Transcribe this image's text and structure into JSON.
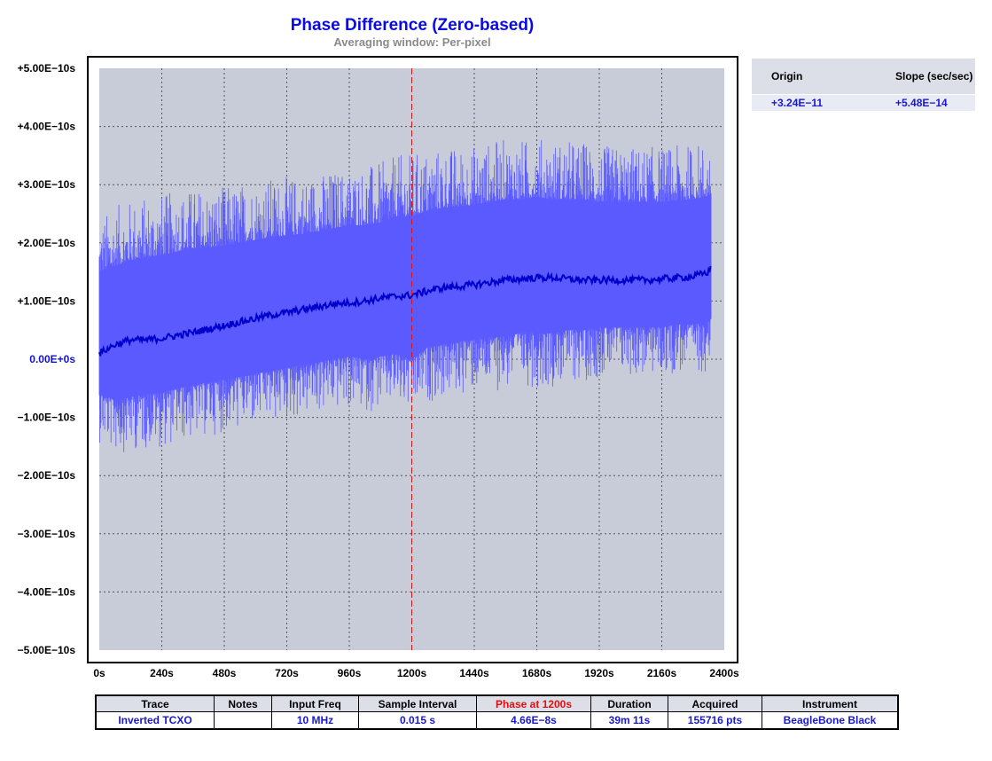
{
  "chart_data": {
    "type": "line",
    "title": "Phase Difference (Zero-based)",
    "subtitle": "Averaging window: Per-pixel",
    "xlim": [
      0,
      2400
    ],
    "ylim": [
      -5e-10,
      5e-10
    ],
    "x_ticks": [
      "0s",
      "240s",
      "480s",
      "720s",
      "960s",
      "1200s",
      "1440s",
      "1680s",
      "1920s",
      "2160s",
      "2400s"
    ],
    "y_ticks": [
      "+5.00E−10s",
      "+4.00E−10s",
      "+3.00E−10s",
      "+2.00E−10s",
      "+1.00E−10s",
      "0.00E+0s",
      "−1.00E−10s",
      "−2.00E−10s",
      "−3.00E−10s",
      "−4.00E−10s",
      "−5.00E−10s"
    ],
    "grid": true,
    "marker_line_x": 1200,
    "series": [
      {
        "role": "mean",
        "x": [
          0,
          60,
          120,
          180,
          240,
          300,
          360,
          420,
          480,
          540,
          600,
          660,
          720,
          780,
          840,
          900,
          960,
          1020,
          1080,
          1140,
          1200,
          1260,
          1320,
          1380,
          1440,
          1500,
          1560,
          1620,
          1680,
          1740,
          1800,
          1860,
          1920,
          1980,
          2040,
          2100,
          2160,
          2220,
          2280,
          2340,
          2350
        ],
        "y": [
          1e-11,
          2.5e-11,
          3.3e-11,
          3.3e-11,
          3.6e-11,
          4.1e-11,
          4.6e-11,
          5.2e-11,
          5.8e-11,
          6.4e-11,
          7e-11,
          7.6e-11,
          8e-11,
          8.5e-11,
          9e-11,
          9.5e-11,
          9.7e-11,
          1e-10,
          1.05e-10,
          1.08e-10,
          1.1e-10,
          1.17e-10,
          1.23e-10,
          1.25e-10,
          1.28e-10,
          1.32e-10,
          1.36e-10,
          1.38e-10,
          1.4e-10,
          1.4e-10,
          1.38e-10,
          1.36e-10,
          1.36e-10,
          1.36e-10,
          1.36e-10,
          1.36e-10,
          1.38e-10,
          1.4e-10,
          1.42e-10,
          1.5e-10,
          1.6e-10
        ]
      },
      {
        "role": "envelope",
        "x": [
          0,
          60,
          120,
          180,
          240,
          300,
          360,
          420,
          480,
          540,
          600,
          660,
          720,
          780,
          840,
          900,
          960,
          1020,
          1080,
          1140,
          1200,
          1260,
          1320,
          1380,
          1440,
          1500,
          1560,
          1620,
          1680,
          1740,
          1800,
          1860,
          1920,
          1980,
          2040,
          2100,
          2160,
          2220,
          2280,
          2340,
          2350
        ],
        "upper": [
          1.5e-10,
          1.6e-10,
          1.7e-10,
          1.75e-10,
          1.78e-10,
          1.85e-10,
          1.9e-10,
          1.92e-10,
          1.95e-10,
          2e-10,
          2.05e-10,
          2.1e-10,
          2.12e-10,
          2.15e-10,
          2.2e-10,
          2.25e-10,
          2.3e-10,
          2.3e-10,
          2.35e-10,
          2.45e-10,
          2.45e-10,
          2.55e-10,
          2.6e-10,
          2.62e-10,
          2.65e-10,
          2.7e-10,
          2.75e-10,
          2.75e-10,
          2.78e-10,
          2.75e-10,
          2.75e-10,
          2.75e-10,
          2.7e-10,
          2.7e-10,
          2.7e-10,
          2.7e-10,
          2.7e-10,
          2.72e-10,
          2.75e-10,
          2.8e-10,
          2.85e-10
        ],
        "lower": [
          -6e-11,
          -7e-11,
          -6.5e-11,
          -6e-11,
          -5.8e-11,
          -5e-11,
          -4.5e-11,
          -4e-11,
          -3.5e-11,
          -3e-11,
          -2.5e-11,
          -2e-11,
          -1.5e-11,
          -1e-11,
          -5e-12,
          0.0,
          5e-12,
          0.0,
          5e-12,
          1e-11,
          0.0,
          2e-11,
          2.5e-11,
          3e-11,
          3.5e-11,
          3.8e-11,
          4e-11,
          4.5e-11,
          4.5e-11,
          4.5e-11,
          5e-11,
          5e-11,
          5.5e-11,
          5.5e-11,
          5.5e-11,
          5.5e-11,
          5.5e-11,
          6e-11,
          6e-11,
          6.5e-11,
          7e-11
        ]
      }
    ]
  },
  "fit_table": {
    "headers": [
      "Origin",
      "Slope (sec/sec)"
    ],
    "values": [
      "+3.24E−11",
      "+5.48E−14"
    ]
  },
  "info_table": {
    "headers": [
      "Trace",
      "Notes",
      "Input Freq",
      "Sample Interval",
      "Phase at 1200s",
      "Duration",
      "Acquired",
      "Instrument"
    ],
    "values": [
      "Inverted TCXO",
      "",
      "10 MHz",
      "0.015 s",
      "4.66E−8s",
      "39m 11s",
      "155716 pts",
      "BeagleBone Black"
    ]
  },
  "colors": {
    "plot_bg": "#c8cbd8",
    "envelope": "#5a5aff",
    "mean": "#0000cc",
    "marker": "#dd1111",
    "accent_text": "#1a1acc"
  }
}
